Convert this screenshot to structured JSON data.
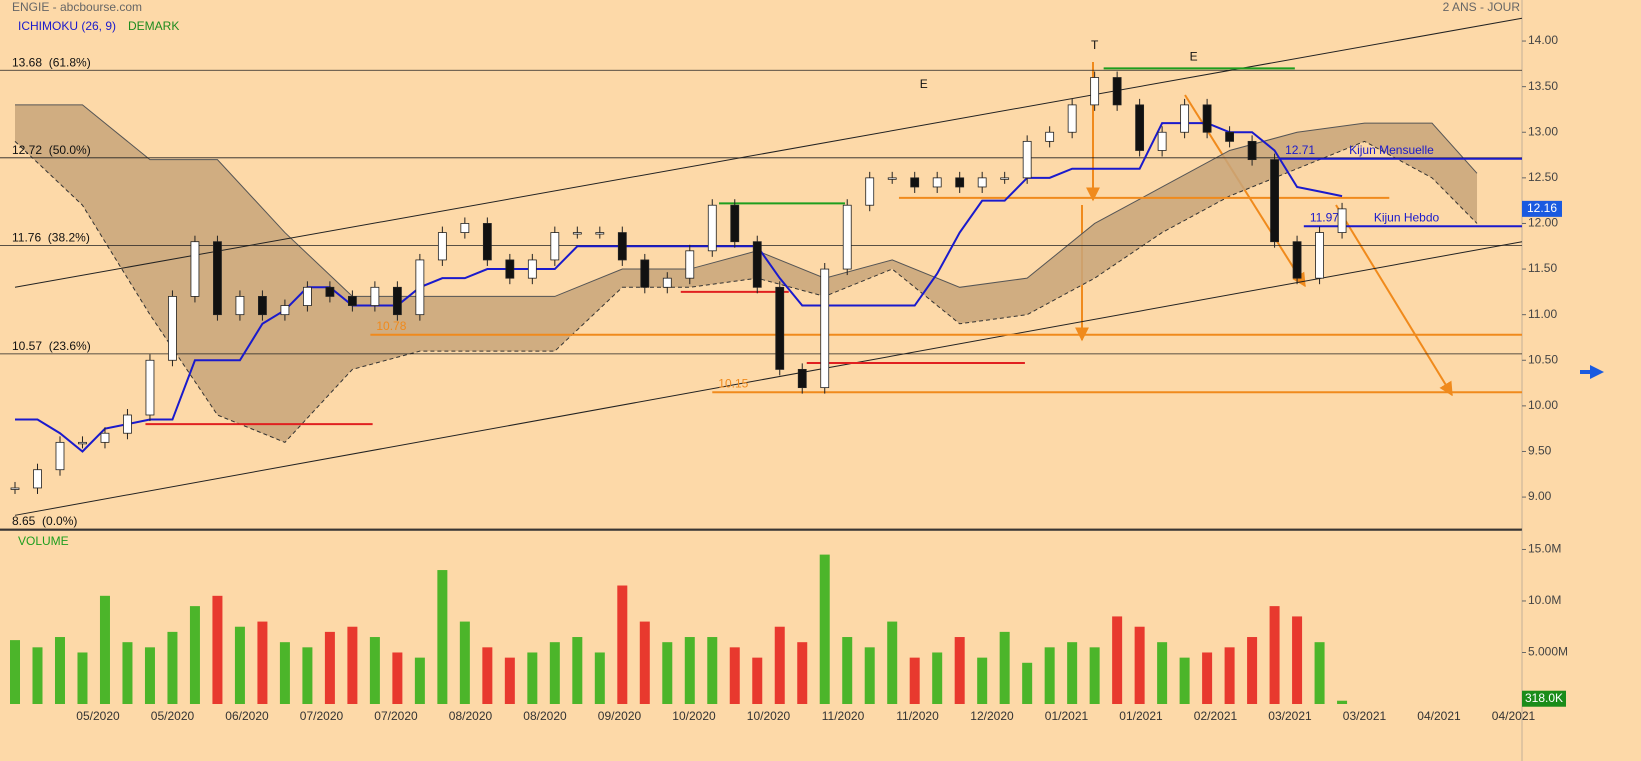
{
  "chart_data": {
    "type": "candlestick",
    "title": "ENGIE - abcbourse.com",
    "subtitle": "2 ANS - JOUR",
    "indicators": [
      {
        "name": "ICHIMOKU (26, 9)",
        "color": "#1a1acc"
      },
      {
        "name": "DEMARK",
        "color": "#1e8c1e"
      }
    ],
    "volume_title": "VOLUME",
    "xlim": [
      -0.667,
      67
    ],
    "ylim": [
      8.65,
      14.45
    ],
    "yticks": [
      {
        "value": 14,
        "label": "14.00"
      },
      {
        "value": 13.5,
        "label": "13.50"
      },
      {
        "value": 13,
        "label": "13.00"
      },
      {
        "value": 12.5,
        "label": "12.50"
      },
      {
        "value": 12,
        "label": "12.00"
      },
      {
        "value": 11.5,
        "label": "11.50"
      },
      {
        "value": 11,
        "label": "11.00"
      },
      {
        "value": 10.5,
        "label": "10.50"
      },
      {
        "value": 10,
        "label": "10.00"
      },
      {
        "value": 9.5,
        "label": "9.50"
      },
      {
        "value": 9,
        "label": "9.00"
      }
    ],
    "categories": [
      "05/2020",
      "05/2020",
      "06/2020",
      "07/2020",
      "07/2020",
      "08/2020",
      "08/2020",
      "09/2020",
      "10/2020",
      "10/2020",
      "11/2020",
      "11/2020",
      "12/2020",
      "01/2021",
      "01/2021",
      "02/2021",
      "03/2021",
      "03/2021",
      "04/2021",
      "04/2021"
    ],
    "close": {
      "values": [
        9.1,
        9.3,
        9.6,
        9.6,
        9.7,
        9.9,
        10.5,
        11.2,
        11.8,
        11.0,
        11.2,
        11.0,
        11.1,
        11.3,
        11.2,
        11.1,
        11.3,
        11.0,
        11.6,
        11.9,
        12.0,
        11.6,
        11.4,
        11.6,
        11.9,
        11.9,
        11.9,
        11.6,
        11.3,
        11.4,
        11.7,
        12.2,
        11.8,
        11.3,
        10.4,
        10.2,
        11.5,
        12.2,
        12.5,
        12.5,
        12.4,
        12.5,
        12.4,
        12.5,
        12.5,
        12.9,
        13.0,
        13.3,
        13.6,
        13.3,
        12.8,
        13.0,
        13.3,
        13.0,
        12.9,
        12.7,
        11.8,
        11.4,
        11.9,
        12.16
      ],
      "up_color": "#ffffff",
      "down_color": "#111111"
    },
    "kijun": {
      "color": "#1a1acc",
      "values": [
        9.85,
        9.85,
        9.7,
        9.5,
        9.75,
        9.8,
        9.85,
        9.85,
        10.5,
        10.5,
        10.5,
        10.9,
        11.05,
        11.3,
        11.3,
        11.1,
        11.1,
        11.1,
        11.3,
        11.4,
        11.4,
        11.5,
        11.5,
        11.5,
        11.5,
        11.75,
        11.75,
        11.75,
        11.75,
        11.75,
        11.75,
        11.75,
        11.75,
        11.75,
        11.4,
        11.1,
        11.1,
        11.1,
        11.1,
        11.1,
        11.1,
        11.45,
        11.9,
        12.25,
        12.25,
        12.5,
        12.5,
        12.6,
        12.6,
        12.6,
        12.6,
        13.1,
        13.1,
        13.1,
        13.0,
        13.0,
        12.8,
        12.4,
        12.35,
        12.3
      ]
    },
    "cloud": {
      "color": "#c8a47a",
      "x": [
        0,
        3,
        6,
        9,
        12,
        15,
        18,
        21,
        24,
        27,
        30,
        33,
        36,
        39,
        42,
        45,
        48,
        51,
        54,
        57,
        60,
        63,
        65
      ],
      "upper": [
        13.3,
        13.3,
        12.7,
        12.7,
        11.9,
        11.2,
        11.2,
        11.2,
        11.2,
        11.5,
        11.5,
        11.7,
        11.4,
        11.6,
        11.3,
        11.4,
        12.0,
        12.4,
        12.8,
        13.0,
        13.1,
        13.1,
        12.55
      ],
      "lower": [
        12.9,
        12.2,
        11.0,
        9.9,
        9.6,
        10.4,
        10.6,
        10.6,
        10.6,
        11.3,
        11.3,
        11.4,
        11.2,
        11.5,
        10.9,
        11.0,
        11.4,
        11.9,
        12.3,
        12.6,
        12.9,
        12.5,
        12.0
      ]
    },
    "fib_levels": [
      {
        "value": 13.68,
        "label": "13.68  (61.8%)"
      },
      {
        "value": 12.72,
        "label": "12.72  (50.0%)"
      },
      {
        "value": 11.76,
        "label": "11.76  (38.2%)"
      },
      {
        "value": 10.57,
        "label": "10.57  (23.6%)"
      },
      {
        "value": 8.65,
        "label": "8.65  (0.0%)"
      }
    ],
    "level_lines": [
      {
        "value": 12.28,
        "from": 39.3,
        "to": 61.1,
        "color": "#f08a1c"
      },
      {
        "value": 10.78,
        "from": 15.8,
        "to": 67,
        "color": "#f08a1c",
        "label": "10.78"
      },
      {
        "value": 10.15,
        "from": 31,
        "to": 67,
        "color": "#f08a1c",
        "label": "10.15"
      },
      {
        "value": 12.71,
        "from": 56.2,
        "to": 67,
        "color": "#1a1acc",
        "label": "12.71",
        "name": "Kijun Mensuelle"
      },
      {
        "value": 11.97,
        "from": 57.3,
        "to": 67,
        "color": "#1a1acc",
        "label": "11.97",
        "name": "Kijun Hebdo"
      },
      {
        "value": 9.8,
        "from": 5.8,
        "to": 15.9,
        "color": "#e02020"
      },
      {
        "value": 11.25,
        "from": 29.6,
        "to": 34.4,
        "color": "#e02020"
      },
      {
        "value": 10.47,
        "from": 35.2,
        "to": 44.9,
        "color": "#e02020"
      },
      {
        "value": 13.7,
        "from": 48.4,
        "to": 56.9,
        "color": "#1e9e1e"
      },
      {
        "value": 12.22,
        "from": 31.3,
        "to": 36.9,
        "color": "#1e9e1e"
      }
    ],
    "trendlines": [
      {
        "x": [
          0,
          67
        ],
        "y": [
          11.3,
          14.25
        ]
      },
      {
        "x": [
          0,
          67
        ],
        "y": [
          8.8,
          11.8
        ]
      }
    ],
    "annotations": [
      {
        "text": "T",
        "x": 48,
        "y": 13.95
      },
      {
        "text": "E",
        "x": 40.4,
        "y": 13.52
      },
      {
        "text": "E",
        "x": 52.4,
        "y": 13.82
      }
    ],
    "current_price": {
      "value": 12.16,
      "label": "12.16"
    },
    "volume": {
      "ylim": [
        0,
        16500000
      ],
      "up_color": "#4cb52a",
      "down_color": "#e8392e",
      "yticks": [
        {
          "value": 15000000,
          "label": "15.0M"
        },
        {
          "value": 10000000,
          "label": "10.0M"
        },
        {
          "value": 5000000,
          "label": "5.000M"
        }
      ],
      "values": [
        6200000,
        5500000,
        6500000,
        5000000,
        10500000,
        6000000,
        5500000,
        7000000,
        9500000,
        10500000,
        7500000,
        8000000,
        6000000,
        5500000,
        7000000,
        7500000,
        6500000,
        5000000,
        4500000,
        13000000,
        8000000,
        5500000,
        4500000,
        5000000,
        6000000,
        6500000,
        5000000,
        11500000,
        8000000,
        6000000,
        6500000,
        6500000,
        5500000,
        4500000,
        7500000,
        6000000,
        14500000,
        6500000,
        5500000,
        8000000,
        4500000,
        5000000,
        6500000,
        4500000,
        7000000,
        4000000,
        5500000,
        6000000,
        5500000,
        8500000,
        7500000,
        6000000,
        4500000,
        5000000,
        5500000,
        6500000,
        9500000,
        8500000,
        6000000,
        318000
      ],
      "last": {
        "value": 318000,
        "label": "318.0K"
      }
    }
  }
}
